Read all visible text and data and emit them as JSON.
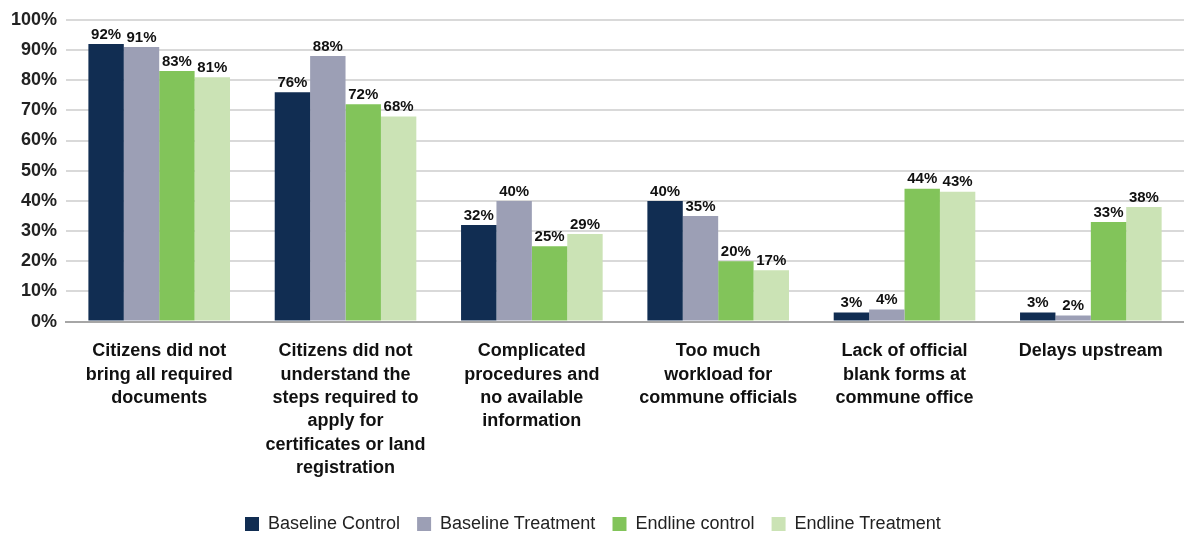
{
  "chart_data": {
    "type": "bar",
    "categories": [
      "Citizens did not bring all required documents",
      "Citizens did not understand the steps required to apply for certificates or land registration",
      "Complicated procedures and no available information",
      "Too much workload for commune officials",
      "Lack of official blank forms at commune office",
      "Delays upstream"
    ],
    "series": [
      {
        "name": "Baseline Control",
        "color": "#112d52",
        "values": [
          92,
          76,
          32,
          40,
          3,
          3
        ],
        "value_labels": [
          "92%",
          "76%",
          "32%",
          "40%",
          "3%",
          "3%"
        ]
      },
      {
        "name": "Baseline Treatment",
        "color": "#9c9fb5",
        "values": [
          91,
          88,
          40,
          35,
          4,
          2
        ],
        "value_labels": [
          "91%",
          "88%",
          "40%",
          "35%",
          "4%",
          "2%"
        ]
      },
      {
        "name": "Endline control",
        "color": "#82c45a",
        "values": [
          83,
          72,
          25,
          20,
          44,
          33
        ],
        "value_labels": [
          "83%",
          "72%",
          "25%",
          "20%",
          "44%",
          "33%"
        ]
      },
      {
        "name": "Endline Treatment",
        "color": "#cbe3b5",
        "values": [
          81,
          68,
          29,
          17,
          43,
          38
        ],
        "value_labels": [
          "81%",
          "68%",
          "29%",
          "17%",
          "43%",
          "38%"
        ]
      }
    ],
    "ylim": [
      0,
      100
    ],
    "yticks": [
      {
        "value": 0,
        "label": "0%"
      },
      {
        "value": 10,
        "label": "10%"
      },
      {
        "value": 20,
        "label": "20%"
      },
      {
        "value": 30,
        "label": "30%"
      },
      {
        "value": 40,
        "label": "40%"
      },
      {
        "value": 50,
        "label": "50%"
      },
      {
        "value": 60,
        "label": "60%"
      },
      {
        "value": 70,
        "label": "70%"
      },
      {
        "value": 80,
        "label": "80%"
      },
      {
        "value": 90,
        "label": "90%"
      },
      {
        "value": 100,
        "label": "100%"
      }
    ],
    "grid": "y",
    "legend": "bottom"
  }
}
